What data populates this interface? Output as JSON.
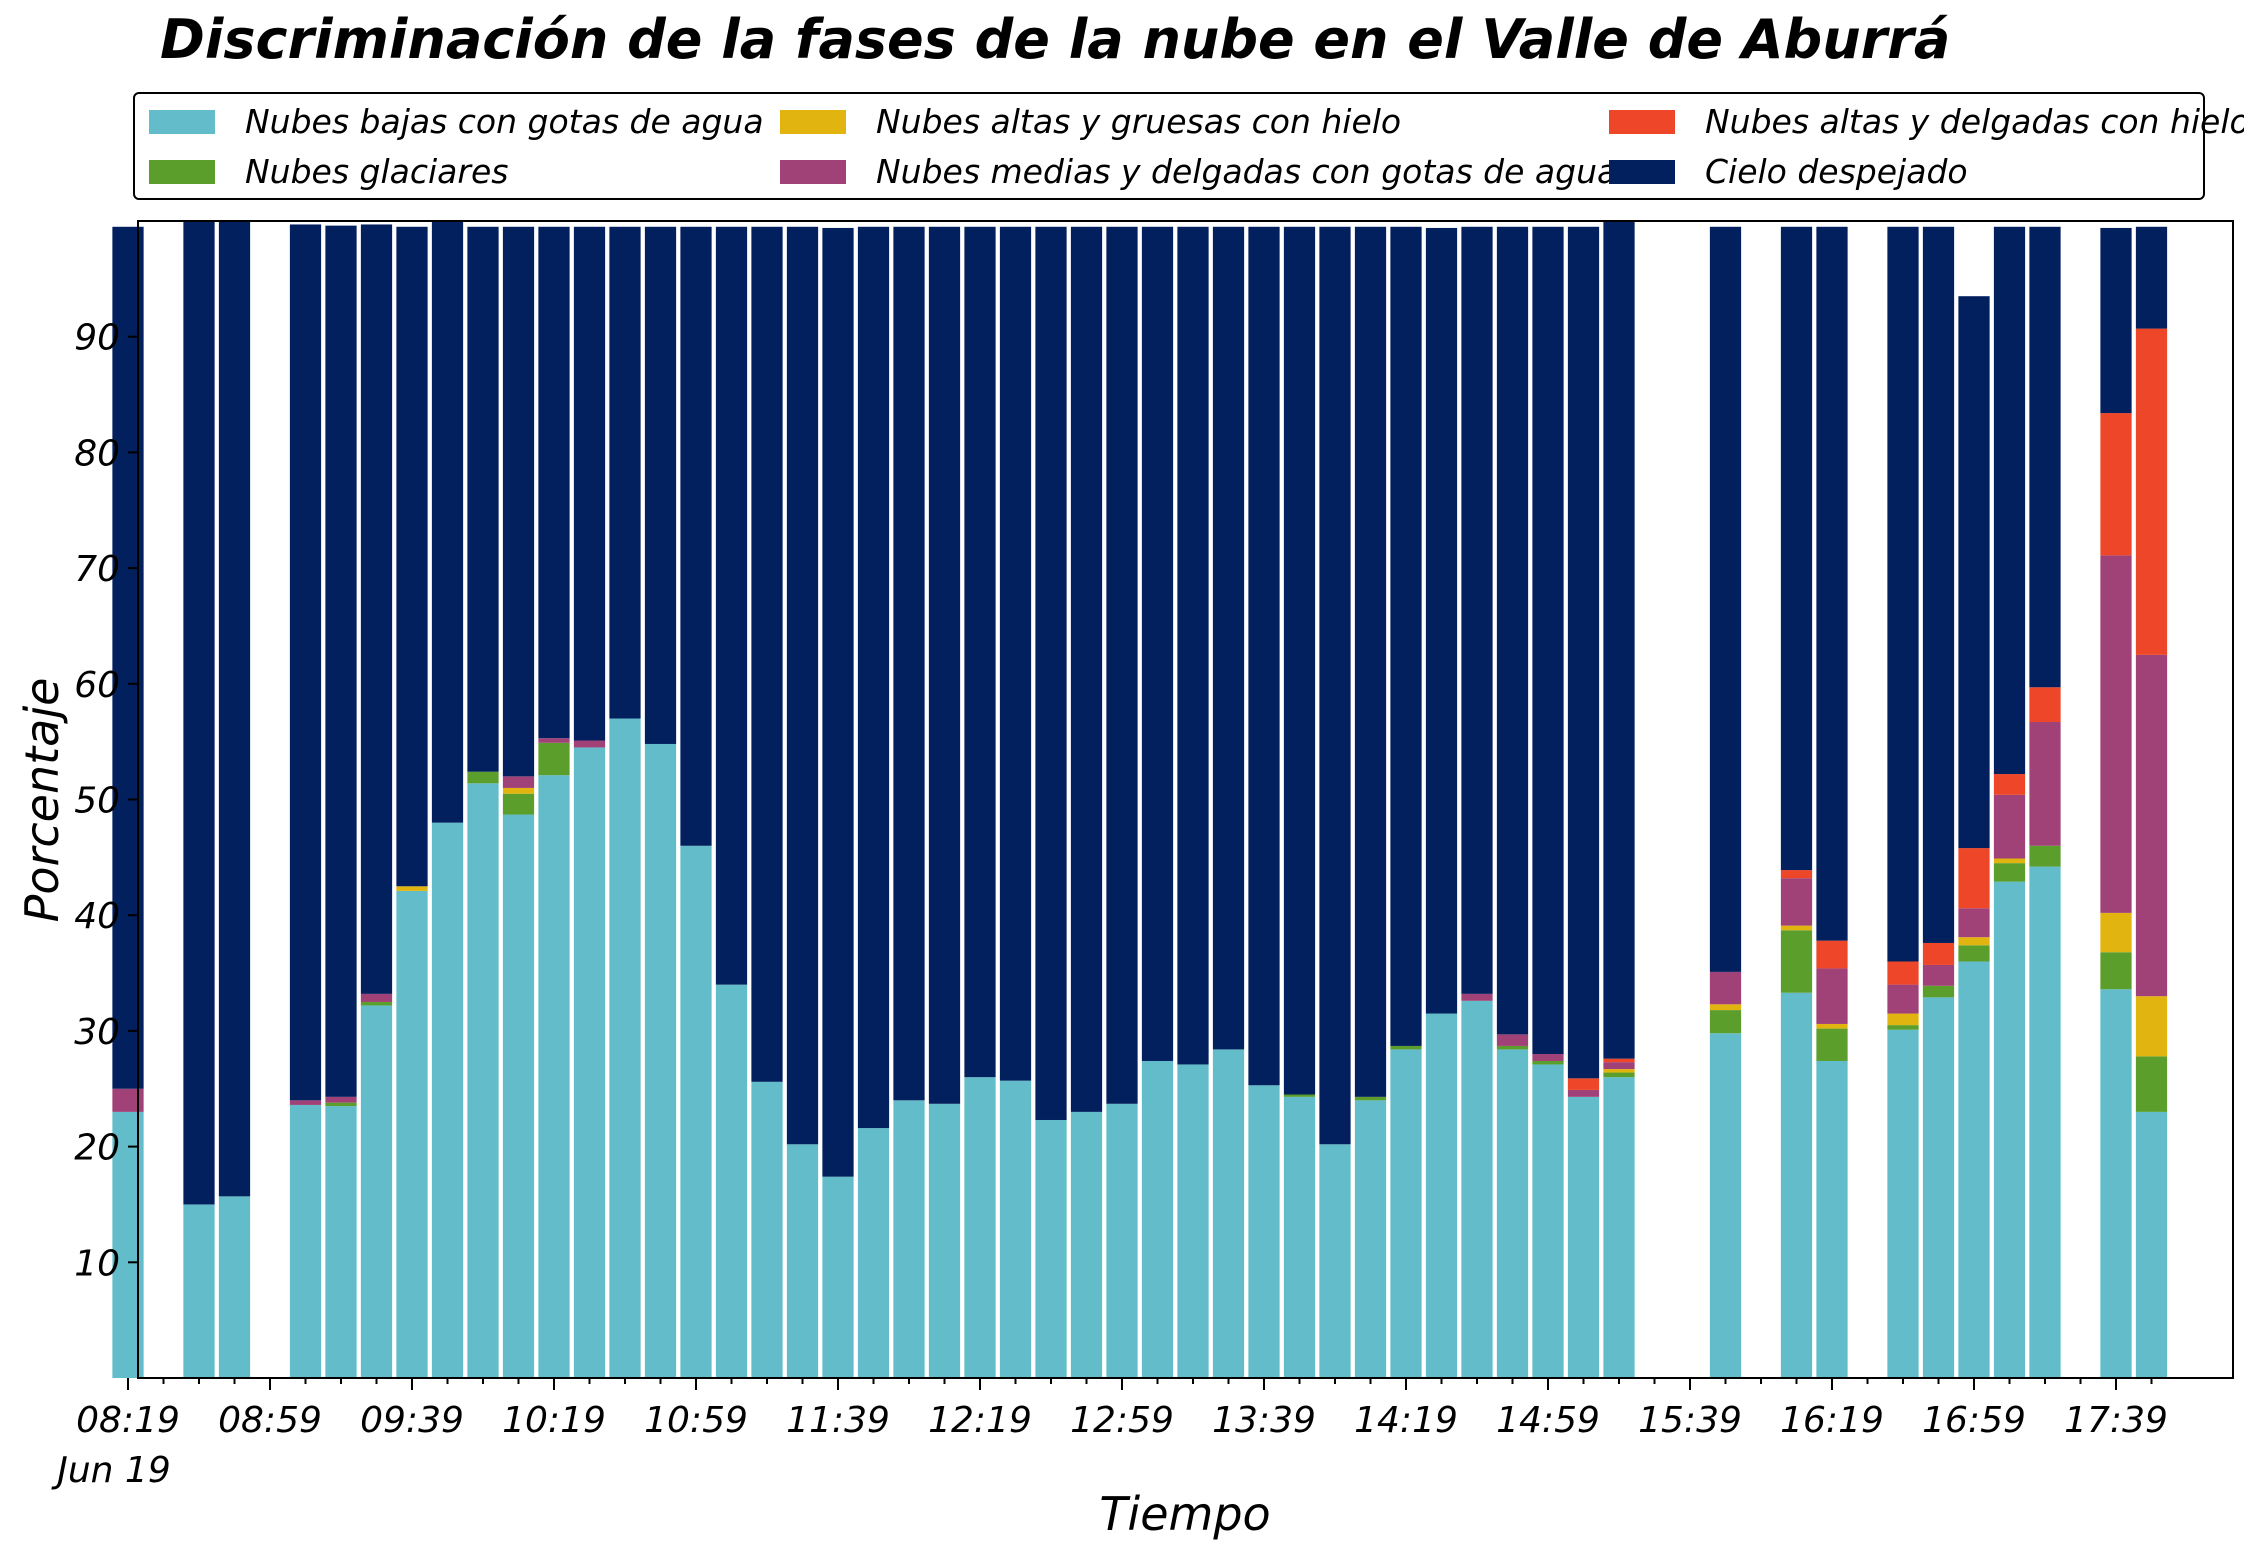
{
  "chart_data": {
    "type": "bar",
    "stacked": true,
    "title": "Discriminación de la fases de la nube en el Valle de Aburrá",
    "xlabel": "Tiempo",
    "ylabel": "Porcentaje",
    "ylim": [
      0,
      100
    ],
    "yticks": [
      10,
      20,
      30,
      40,
      50,
      60,
      70,
      80,
      90
    ],
    "x_date_label": "Jun 19",
    "grid": false,
    "legend_position": "top",
    "x": [
      "08:19",
      "08:29",
      "08:39",
      "08:49",
      "08:59",
      "09:09",
      "09:19",
      "09:29",
      "09:39",
      "09:49",
      "09:59",
      "10:09",
      "10:19",
      "10:29",
      "10:39",
      "10:49",
      "10:59",
      "11:09",
      "11:19",
      "11:29",
      "11:39",
      "11:49",
      "11:59",
      "12:09",
      "12:19",
      "12:29",
      "12:39",
      "12:49",
      "12:59",
      "13:09",
      "13:19",
      "13:29",
      "13:39",
      "13:49",
      "13:59",
      "14:09",
      "14:19",
      "14:29",
      "14:39",
      "14:49",
      "14:59",
      "15:09",
      "15:19",
      "15:29",
      "15:39",
      "15:49",
      "15:59",
      "16:09",
      "16:19",
      "16:29",
      "16:39",
      "16:49",
      "16:59",
      "17:09",
      "17:19",
      "17:29",
      "17:39",
      "17:49"
    ],
    "x_tick_labels": [
      "08:19",
      "08:59",
      "09:39",
      "10:19",
      "10:59",
      "11:39",
      "12:19",
      "12:59",
      "13:39",
      "14:19",
      "14:59",
      "15:39",
      "16:19",
      "16:59",
      "17:39"
    ],
    "series": [
      {
        "name": "Nubes bajas con gotas de agua",
        "color": "#63bcc9",
        "values": [
          23,
          null,
          15,
          15.7,
          null,
          23.6,
          23.5,
          32.2,
          42.1,
          48,
          51.4,
          48.7,
          52.1,
          54.5,
          57,
          54.8,
          46,
          34,
          25.6,
          20.2,
          17.4,
          21.6,
          24,
          23.7,
          26,
          25.7,
          22.3,
          23,
          23.7,
          27.4,
          27.1,
          28.4,
          25.3,
          24.3,
          20.2,
          24,
          28.4,
          31.5,
          32.6,
          28.4,
          27.1,
          24.3,
          26,
          null,
          null,
          29.8,
          null,
          33.3,
          27.4,
          null,
          30.1,
          32.9,
          36,
          42.9,
          44.2,
          null,
          33.6,
          23
        ]
      },
      {
        "name": "Nubes glaciares",
        "color": "#5b9e2c",
        "values": [
          0,
          null,
          0,
          0,
          null,
          0,
          0.3,
          0.3,
          0,
          0,
          1,
          1.8,
          2.8,
          0,
          0,
          0,
          0,
          0,
          0,
          0,
          0,
          0,
          0,
          0,
          0,
          0,
          0,
          0,
          0,
          0,
          0,
          0,
          0,
          0.2,
          0,
          0.3,
          0.3,
          0,
          0,
          0.3,
          0.3,
          0,
          0.4,
          null,
          null,
          2,
          null,
          5.4,
          2.8,
          null,
          0.4,
          1,
          1.4,
          1.6,
          1.8,
          null,
          3.2,
          4.8
        ]
      },
      {
        "name": "Nubes altas y gruesas con hielo",
        "color": "#e2b40f",
        "values": [
          0,
          null,
          0,
          0,
          null,
          0,
          0,
          0,
          0.4,
          0,
          0,
          0.5,
          0,
          0,
          0,
          0,
          0,
          0,
          0,
          0,
          0,
          0,
          0,
          0,
          0,
          0,
          0,
          0,
          0,
          0,
          0,
          0,
          0,
          0,
          0,
          0,
          0,
          0,
          0,
          0,
          0,
          0,
          0.3,
          null,
          null,
          0.5,
          null,
          0.4,
          0.4,
          null,
          1,
          0,
          0.7,
          0.4,
          0,
          null,
          3.4,
          5.2
        ]
      },
      {
        "name": "Nubes medias y delgadas con gotas de agua",
        "color": "#a04278",
        "values": [
          2,
          null,
          0,
          0,
          null,
          0.4,
          0.5,
          0.7,
          0,
          0,
          0,
          1,
          0.4,
          0.6,
          0,
          0,
          0,
          0,
          0,
          0,
          0,
          0,
          0,
          0,
          0,
          0,
          0,
          0,
          0,
          0,
          0,
          0,
          0,
          0,
          0,
          0,
          0,
          0,
          0.6,
          1,
          0.6,
          0.6,
          0.6,
          null,
          null,
          2.8,
          null,
          4.1,
          4.8,
          null,
          2.5,
          1.8,
          2.5,
          5.5,
          10.7,
          null,
          30.9,
          29.5
        ]
      },
      {
        "name": "Nubes altas y delgadas con hielo",
        "color": "#ee4629",
        "values": [
          0,
          null,
          0,
          0,
          null,
          0,
          0,
          0,
          0,
          0,
          0,
          0,
          0,
          0,
          0,
          0,
          0,
          0,
          0,
          0,
          0,
          0,
          0,
          0,
          0,
          0,
          0,
          0,
          0,
          0,
          0,
          0,
          0,
          0,
          0,
          0,
          0,
          0,
          0,
          0,
          0,
          1,
          0.3,
          null,
          null,
          0,
          null,
          0.7,
          2.4,
          null,
          2,
          1.9,
          5.2,
          1.8,
          3,
          null,
          12.3,
          28.2
        ]
      },
      {
        "name": "Cielo despejado",
        "color": "#021f5e",
        "values": [
          74.5,
          null,
          85,
          84.3,
          null,
          75.7,
          75.3,
          66.5,
          57,
          52,
          47.1,
          47.5,
          44.2,
          44.4,
          42.5,
          44.7,
          53.5,
          65.5,
          73.9,
          79.3,
          82,
          77.9,
          75.5,
          75.8,
          73.5,
          73.8,
          77.2,
          76.5,
          75.8,
          72.1,
          72.4,
          71.1,
          74.2,
          75,
          79.3,
          75.2,
          70.8,
          67.9,
          66.3,
          69.8,
          71.5,
          73.6,
          72.4,
          null,
          null,
          64.4,
          null,
          55.6,
          61.7,
          null,
          63.5,
          61.9,
          47.7,
          47.3,
          39.8,
          null,
          16,
          8.8
        ]
      }
    ]
  }
}
